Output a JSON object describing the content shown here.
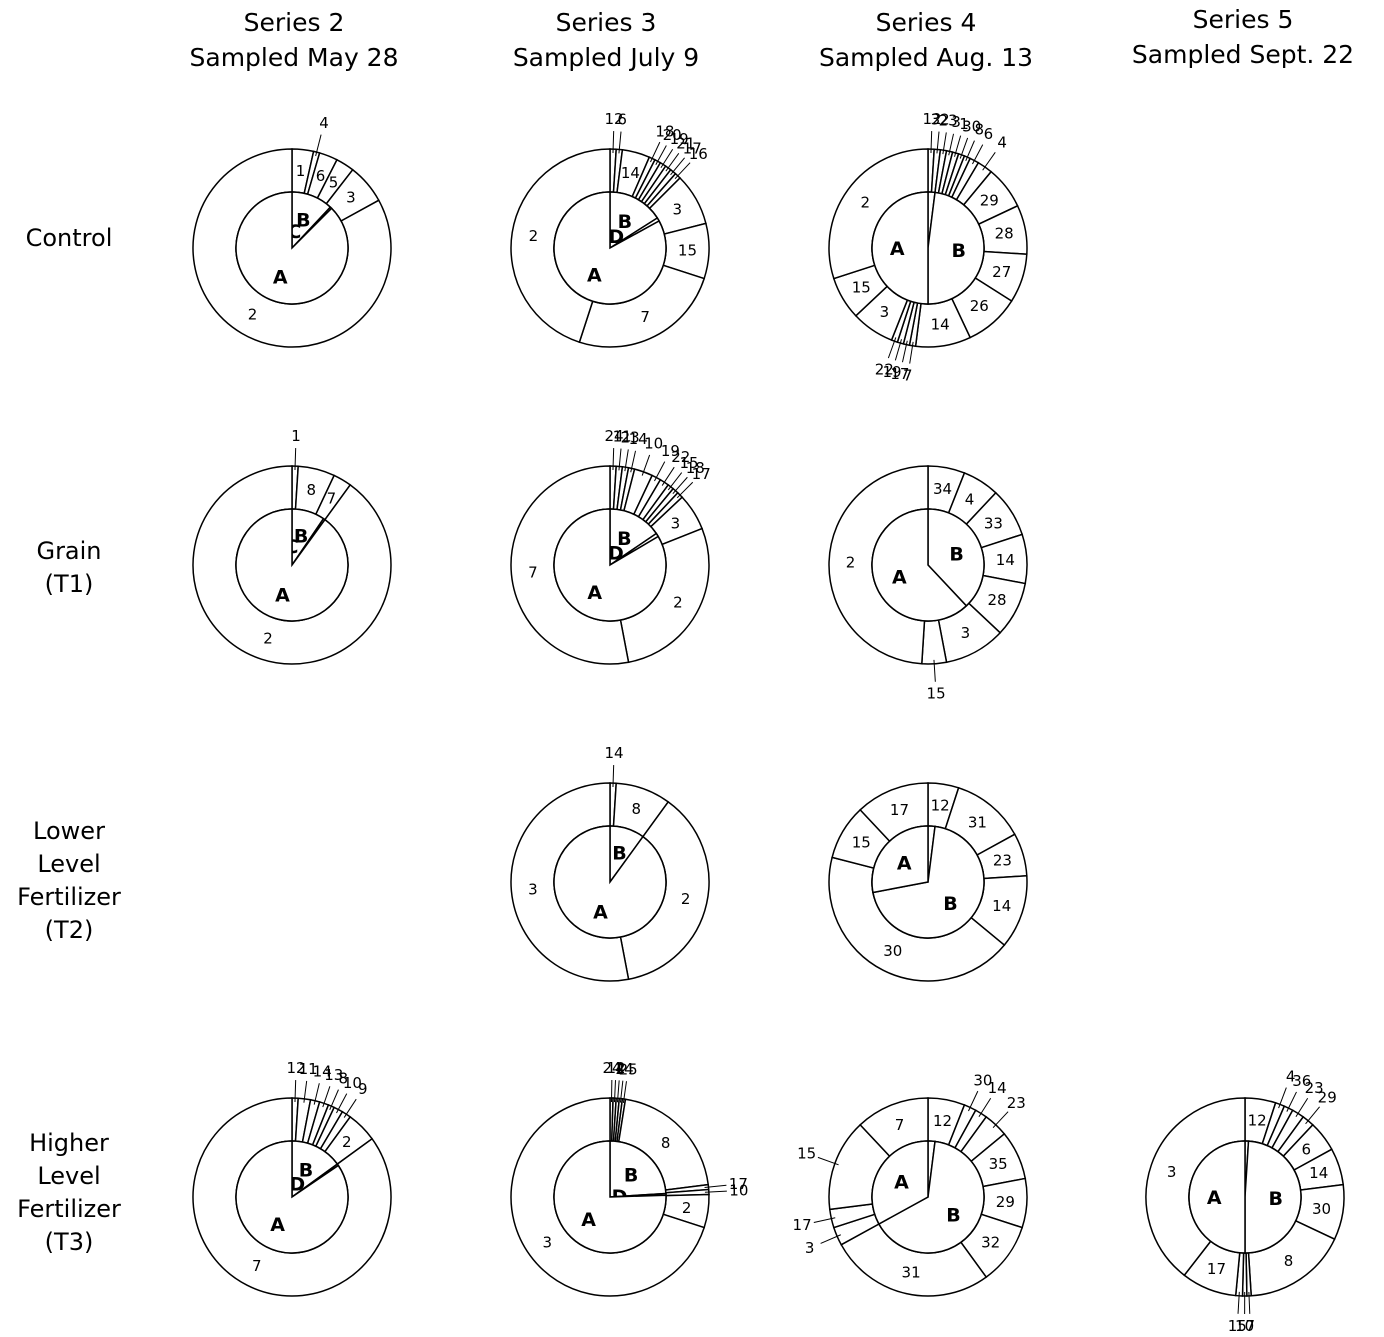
{
  "columns": [
    {
      "line1": "Series 2",
      "line2": "Sampled May 28"
    },
    {
      "line1": "Series 3",
      "line2": "Sampled July 9"
    },
    {
      "line1": "Series 4",
      "line2": "Sampled Aug. 13"
    },
    {
      "line1": "Series 5",
      "line2": "Sampled Sept. 22"
    }
  ],
  "rows": [
    {
      "lines": [
        "Control"
      ]
    },
    {
      "lines": [
        "Grain",
        "(T1)"
      ]
    },
    {
      "lines": [
        "Lower",
        "Level",
        "Fertilizer",
        "(T2)"
      ]
    },
    {
      "lines": [
        "Higher",
        "Level",
        "Fertilizer",
        "(T3)"
      ]
    }
  ],
  "chart_data": {
    "type": "pie",
    "note_style": "nested donut; inner ring = groups, outer ring = numbered categories",
    "charts": [
      {
        "row": 0,
        "col": 0,
        "inner": [
          {
            "label": "B",
            "value": 12
          },
          {
            "label": "C",
            "value": 0.5
          },
          {
            "label": "A",
            "value": 87.5
          }
        ],
        "outer": [
          {
            "label": "1",
            "value": 3.5,
            "style": "in"
          },
          {
            "label": "4",
            "value": 1,
            "style": "leader"
          },
          {
            "label": "6",
            "value": 3,
            "style": "in"
          },
          {
            "label": "5",
            "value": 3,
            "style": "in"
          },
          {
            "label": "3",
            "value": 6.5,
            "style": "in"
          },
          {
            "label": "2",
            "value": 83,
            "style": "in"
          }
        ]
      },
      {
        "row": 0,
        "col": 1,
        "inner": [
          {
            "label": "B",
            "value": 16
          },
          {
            "label": "D",
            "value": 1
          },
          {
            "label": "A",
            "value": 83
          }
        ],
        "outer": [
          {
            "label": "12",
            "value": 1,
            "style": "leader"
          },
          {
            "label": "6",
            "value": 1,
            "style": "leader"
          },
          {
            "label": "14",
            "value": 4.5,
            "style": "in"
          },
          {
            "label": "18",
            "value": 1,
            "style": "leader"
          },
          {
            "label": "20",
            "value": 1,
            "style": "leader"
          },
          {
            "label": "19",
            "value": 1,
            "style": "leader"
          },
          {
            "label": "21",
            "value": 1,
            "style": "leader"
          },
          {
            "label": "17",
            "value": 1,
            "style": "leader"
          },
          {
            "label": "16",
            "value": 1,
            "style": "leader"
          },
          {
            "label": "3",
            "value": 8.5,
            "style": "in"
          },
          {
            "label": "15",
            "value": 9,
            "style": "in"
          },
          {
            "label": "7",
            "value": 25,
            "style": "in"
          },
          {
            "label": "2",
            "value": 45,
            "style": "in"
          }
        ]
      },
      {
        "row": 0,
        "col": 2,
        "inner": [
          {
            "label": "D",
            "value": 2
          },
          {
            "label": "B",
            "value": 48
          },
          {
            "label": "A",
            "value": 50
          }
        ],
        "outer": [
          {
            "label": "12",
            "value": 1,
            "style": "leader"
          },
          {
            "label": "32",
            "value": 1,
            "style": "leader"
          },
          {
            "label": "23",
            "value": 1,
            "style": "leader"
          },
          {
            "label": "3",
            "value": 1,
            "style": "leader"
          },
          {
            "label": "1",
            "value": 1,
            "style": "leader"
          },
          {
            "label": "30",
            "value": 1,
            "style": "leader"
          },
          {
            "label": "8",
            "value": 1,
            "style": "leader"
          },
          {
            "label": "6",
            "value": 1.5,
            "style": "leader"
          },
          {
            "label": "4",
            "value": 2.5,
            "style": "leader"
          },
          {
            "label": "29",
            "value": 7,
            "style": "in"
          },
          {
            "label": "28",
            "value": 8,
            "style": "in"
          },
          {
            "label": "27",
            "value": 8,
            "style": "in"
          },
          {
            "label": "26",
            "value": 9,
            "style": "in"
          },
          {
            "label": "14",
            "value": 9,
            "style": "in"
          },
          {
            "label": "7",
            "value": 1,
            "style": "leader"
          },
          {
            "label": "17",
            "value": 1,
            "style": "leader"
          },
          {
            "label": "19",
            "value": 1,
            "style": "leader"
          },
          {
            "label": "22",
            "value": 1,
            "style": "leader"
          },
          {
            "label": "3",
            "value": 7,
            "style": "in"
          },
          {
            "label": "15",
            "value": 7,
            "style": "in"
          },
          {
            "label": "2",
            "value": 30,
            "style": "in"
          }
        ]
      },
      {
        "row": 1,
        "col": 0,
        "inner": [
          {
            "label": "B",
            "value": 9.5
          },
          {
            "label": "C",
            "value": 0.5
          },
          {
            "label": "A",
            "value": 90
          }
        ],
        "outer": [
          {
            "label": "1",
            "value": 1,
            "style": "leader"
          },
          {
            "label": "8",
            "value": 6,
            "style": "in"
          },
          {
            "label": "7",
            "value": 3,
            "style": "in"
          },
          {
            "label": "2",
            "value": 90,
            "style": "in"
          }
        ]
      },
      {
        "row": 1,
        "col": 1,
        "inner": [
          {
            "label": "B",
            "value": 15.5
          },
          {
            "label": "D",
            "value": 1
          },
          {
            "label": "A",
            "value": 83.5
          }
        ],
        "outer": [
          {
            "label": "24",
            "value": 1,
            "style": "leader"
          },
          {
            "label": "11",
            "value": 1,
            "style": "leader"
          },
          {
            "label": "23",
            "value": 1,
            "style": "leader"
          },
          {
            "label": "14",
            "value": 1,
            "style": "leader"
          },
          {
            "label": "10",
            "value": 3,
            "style": "leader"
          },
          {
            "label": "19",
            "value": 1.5,
            "style": "leader"
          },
          {
            "label": "22",
            "value": 1.5,
            "style": "leader"
          },
          {
            "label": "15",
            "value": 1,
            "style": "leader"
          },
          {
            "label": "18",
            "value": 1,
            "style": "leader"
          },
          {
            "label": "17",
            "value": 1,
            "style": "leader"
          },
          {
            "label": "3",
            "value": 6,
            "style": "in"
          },
          {
            "label": "2",
            "value": 28,
            "style": "in"
          },
          {
            "label": "7",
            "value": 53,
            "style": "in"
          }
        ]
      },
      {
        "row": 1,
        "col": 2,
        "inner": [
          {
            "label": "B",
            "value": 38
          },
          {
            "label": "A",
            "value": 62
          }
        ],
        "outer": [
          {
            "label": "34",
            "value": 6,
            "style": "in"
          },
          {
            "label": "4",
            "value": 6,
            "style": "in"
          },
          {
            "label": "33",
            "value": 8,
            "style": "in"
          },
          {
            "label": "14",
            "value": 8,
            "style": "in"
          },
          {
            "label": "28",
            "value": 9,
            "style": "in"
          },
          {
            "label": "3",
            "value": 10,
            "style": "in"
          },
          {
            "label": "15",
            "value": 4,
            "style": "below"
          },
          {
            "label": "2",
            "value": 49,
            "style": "in"
          }
        ]
      },
      {
        "row": 2,
        "col": 1,
        "inner": [
          {
            "label": "B",
            "value": 10
          },
          {
            "label": "A",
            "value": 90
          }
        ],
        "outer": [
          {
            "label": "14",
            "value": 1,
            "style": "leader"
          },
          {
            "label": "8",
            "value": 9,
            "style": "in"
          },
          {
            "label": "2",
            "value": 37,
            "style": "in"
          },
          {
            "label": "3",
            "value": 53,
            "style": "in"
          }
        ]
      },
      {
        "row": 2,
        "col": 2,
        "inner": [
          {
            "label": "D",
            "value": 2
          },
          {
            "label": "B",
            "value": 70
          },
          {
            "label": "A",
            "value": 28
          }
        ],
        "outer": [
          {
            "label": "12",
            "value": 5,
            "style": "in"
          },
          {
            "label": "31",
            "value": 12,
            "style": "in"
          },
          {
            "label": "23",
            "value": 7,
            "style": "in"
          },
          {
            "label": "14",
            "value": 12,
            "style": "in"
          },
          {
            "label": "30",
            "value": 43,
            "style": "in"
          },
          {
            "label": "15",
            "value": 9,
            "style": "in"
          },
          {
            "label": "17",
            "value": 12,
            "style": "in"
          }
        ]
      },
      {
        "row": 3,
        "col": 0,
        "inner": [
          {
            "label": "B",
            "value": 15
          },
          {
            "label": "D",
            "value": 0.5
          },
          {
            "label": "A",
            "value": 84.5
          }
        ],
        "outer": [
          {
            "label": "12",
            "value": 1,
            "style": "leader"
          },
          {
            "label": "11",
            "value": 2,
            "style": "leader"
          },
          {
            "label": "14",
            "value": 1.5,
            "style": "leader"
          },
          {
            "label": "13",
            "value": 1.5,
            "style": "leader"
          },
          {
            "label": "8",
            "value": 1,
            "style": "leader"
          },
          {
            "label": "10",
            "value": 1.5,
            "style": "leader"
          },
          {
            "label": "9",
            "value": 1.5,
            "style": "leader"
          },
          {
            "label": "2",
            "value": 5,
            "style": "in"
          },
          {
            "label": "7",
            "value": 85,
            "style": "in"
          }
        ]
      },
      {
        "row": 3,
        "col": 1,
        "inner": [
          {
            "label": "B",
            "value": 24
          },
          {
            "label": "D",
            "value": 0.5
          },
          {
            "label": "A",
            "value": 75.5
          }
        ],
        "outer": [
          {
            "label": "24",
            "value": 0.5,
            "style": "leader"
          },
          {
            "label": "12",
            "value": 0.5,
            "style": "leader"
          },
          {
            "label": "4",
            "value": 0.5,
            "style": "leader"
          },
          {
            "label": "14",
            "value": 0.5,
            "style": "leader"
          },
          {
            "label": "25",
            "value": 0.5,
            "style": "leader"
          },
          {
            "label": "8",
            "value": 20.5,
            "style": "in"
          },
          {
            "label": "17",
            "value": 0.8,
            "style": "leader"
          },
          {
            "label": "10",
            "value": 0.8,
            "style": "leader"
          },
          {
            "label": "2",
            "value": 5.4,
            "style": "in"
          },
          {
            "label": "3",
            "value": 70,
            "style": "in"
          }
        ]
      },
      {
        "row": 3,
        "col": 2,
        "inner": [
          {
            "label": "D",
            "value": 2
          },
          {
            "label": "B",
            "value": 65
          },
          {
            "label": "A",
            "value": 33
          }
        ],
        "outer": [
          {
            "label": "12",
            "value": 6,
            "style": "in"
          },
          {
            "label": "30",
            "value": 2,
            "style": "leader"
          },
          {
            "label": "14",
            "value": 2,
            "style": "leader"
          },
          {
            "label": "23",
            "value": 4,
            "style": "leader"
          },
          {
            "label": "35",
            "value": 8,
            "style": "in"
          },
          {
            "label": "29",
            "value": 8,
            "style": "in"
          },
          {
            "label": "32",
            "value": 10,
            "style": "in"
          },
          {
            "label": "31",
            "value": 27,
            "style": "in"
          },
          {
            "label": "3",
            "value": 3,
            "style": "leader"
          },
          {
            "label": "17",
            "value": 3,
            "style": "leader"
          },
          {
            "label": "15",
            "value": 15,
            "style": "leader"
          },
          {
            "label": "7",
            "value": 12,
            "style": "in"
          }
        ]
      },
      {
        "row": 3,
        "col": 3,
        "inner": [
          {
            "label": "D",
            "value": 1
          },
          {
            "label": "B",
            "value": 49
          },
          {
            "label": "A",
            "value": 50
          }
        ],
        "outer": [
          {
            "label": "12",
            "value": 5,
            "style": "in"
          },
          {
            "label": "4",
            "value": 1.5,
            "style": "leader"
          },
          {
            "label": "36",
            "value": 1.5,
            "style": "leader"
          },
          {
            "label": "23",
            "value": 2,
            "style": "leader"
          },
          {
            "label": "29",
            "value": 2,
            "style": "leader"
          },
          {
            "label": "6",
            "value": 5,
            "style": "in"
          },
          {
            "label": "14",
            "value": 6,
            "style": "in"
          },
          {
            "label": "30",
            "value": 9,
            "style": "in"
          },
          {
            "label": "8",
            "value": 17,
            "style": "in"
          },
          {
            "label": "7",
            "value": 0.7,
            "style": "below"
          },
          {
            "label": "10",
            "value": 0.7,
            "style": "below"
          },
          {
            "label": "15",
            "value": 1.1,
            "style": "below"
          },
          {
            "label": "17",
            "value": 9,
            "style": "in"
          },
          {
            "label": "3",
            "value": 39.5,
            "style": "in"
          }
        ]
      }
    ]
  }
}
